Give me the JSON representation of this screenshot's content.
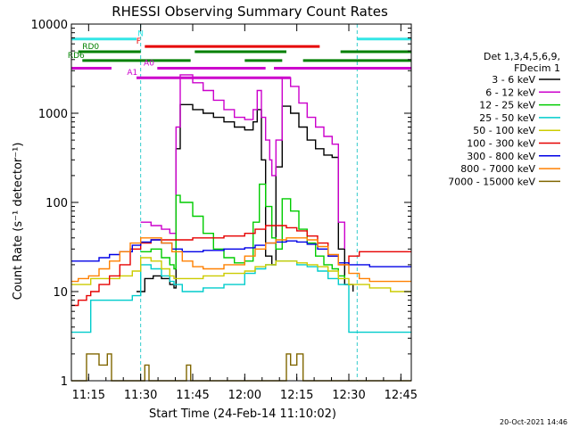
{
  "chart_data": {
    "type": "line",
    "title": "RHESSI Observing Summary Count Rates",
    "xlabel": "Start Time (24-Feb-14 11:10:02)",
    "ylabel": "Count Rate (s⁻¹ detector⁻¹)",
    "yscale": "log",
    "ylim": [
      1,
      10000
    ],
    "xlim": [
      11.1672,
      12.8
    ],
    "x_ticks": [
      {
        "v": 11.25,
        "label": "11:15"
      },
      {
        "v": 11.5,
        "label": "11:30"
      },
      {
        "v": 11.75,
        "label": "11:45"
      },
      {
        "v": 12.0,
        "label": "12:00"
      },
      {
        "v": 12.25,
        "label": "12:15"
      },
      {
        "v": 12.5,
        "label": "12:30"
      },
      {
        "v": 12.75,
        "label": "12:45"
      }
    ],
    "y_ticks": [
      {
        "v": 1,
        "label": "1"
      },
      {
        "v": 10,
        "label": "10"
      },
      {
        "v": 100,
        "label": "100"
      },
      {
        "v": 1000,
        "label": "1000"
      },
      {
        "v": 10000,
        "label": "10000"
      }
    ],
    "legend_title": [
      "Det 1,3,4,5,6,9,",
      "FDecim 1"
    ],
    "legend_position": "right",
    "footer_date": "20-Oct-2021 14:46",
    "series": [
      {
        "name": "3 - 6 keV",
        "color": "#000000",
        "points": [
          [
            11.48,
            10
          ],
          [
            11.52,
            14
          ],
          [
            11.56,
            15
          ],
          [
            11.6,
            14
          ],
          [
            11.64,
            12
          ],
          [
            11.66,
            11
          ],
          [
            11.67,
            400
          ],
          [
            11.69,
            1250
          ],
          [
            11.75,
            1100
          ],
          [
            11.8,
            1000
          ],
          [
            11.85,
            900
          ],
          [
            11.9,
            800
          ],
          [
            11.95,
            700
          ],
          [
            12.0,
            650
          ],
          [
            12.04,
            800
          ],
          [
            12.06,
            1100
          ],
          [
            12.08,
            300
          ],
          [
            12.1,
            25
          ],
          [
            12.13,
            20
          ],
          [
            12.15,
            250
          ],
          [
            12.18,
            1200
          ],
          [
            12.22,
            1000
          ],
          [
            12.26,
            700
          ],
          [
            12.3,
            500
          ],
          [
            12.34,
            400
          ],
          [
            12.38,
            340
          ],
          [
            12.42,
            320
          ],
          [
            12.45,
            30
          ],
          [
            12.48,
            12
          ],
          [
            12.52,
            10
          ]
        ]
      },
      {
        "name": "6 - 12 keV",
        "color": "#cc00cc",
        "points": [
          [
            11.5,
            60
          ],
          [
            11.55,
            55
          ],
          [
            11.6,
            50
          ],
          [
            11.64,
            45
          ],
          [
            11.66,
            45
          ],
          [
            11.67,
            700
          ],
          [
            11.69,
            2700
          ],
          [
            11.75,
            2200
          ],
          [
            11.8,
            1800
          ],
          [
            11.85,
            1400
          ],
          [
            11.9,
            1100
          ],
          [
            11.95,
            900
          ],
          [
            12.0,
            850
          ],
          [
            12.04,
            1100
          ],
          [
            12.06,
            1800
          ],
          [
            12.08,
            900
          ],
          [
            12.1,
            500
          ],
          [
            12.12,
            300
          ],
          [
            12.13,
            200
          ],
          [
            12.15,
            500
          ],
          [
            12.18,
            2500
          ],
          [
            12.22,
            2000
          ],
          [
            12.26,
            1300
          ],
          [
            12.3,
            900
          ],
          [
            12.34,
            700
          ],
          [
            12.38,
            550
          ],
          [
            12.42,
            450
          ],
          [
            12.45,
            60
          ],
          [
            12.48,
            30
          ]
        ]
      },
      {
        "name": "12 - 25 keV",
        "color": "#00cc00",
        "points": [
          [
            11.5,
            28
          ],
          [
            11.55,
            30
          ],
          [
            11.6,
            24
          ],
          [
            11.64,
            20
          ],
          [
            11.66,
            18
          ],
          [
            11.67,
            120
          ],
          [
            11.69,
            100
          ],
          [
            11.75,
            70
          ],
          [
            11.8,
            45
          ],
          [
            11.85,
            30
          ],
          [
            11.9,
            24
          ],
          [
            11.95,
            21
          ],
          [
            12.0,
            22
          ],
          [
            12.04,
            60
          ],
          [
            12.07,
            160
          ],
          [
            12.1,
            90
          ],
          [
            12.13,
            40
          ],
          [
            12.15,
            30
          ],
          [
            12.18,
            110
          ],
          [
            12.22,
            80
          ],
          [
            12.26,
            50
          ],
          [
            12.3,
            35
          ],
          [
            12.34,
            25
          ],
          [
            12.38,
            20
          ],
          [
            12.42,
            18
          ],
          [
            12.45,
            15
          ],
          [
            12.48,
            14
          ]
        ]
      },
      {
        "name": "25 - 50 keV",
        "color": "#00cccc",
        "points": [
          [
            11.1672,
            3.5
          ],
          [
            11.2,
            3.5
          ],
          [
            11.24,
            3.5
          ],
          [
            11.26,
            8
          ],
          [
            11.3,
            8
          ],
          [
            11.35,
            8
          ],
          [
            11.4,
            8
          ],
          [
            11.46,
            9
          ],
          [
            11.5,
            20
          ],
          [
            11.55,
            18
          ],
          [
            11.6,
            15
          ],
          [
            11.64,
            13
          ],
          [
            11.66,
            12
          ],
          [
            11.7,
            10
          ],
          [
            11.8,
            11
          ],
          [
            11.9,
            12
          ],
          [
            12.0,
            16
          ],
          [
            12.05,
            18
          ],
          [
            12.1,
            20
          ],
          [
            12.15,
            22
          ],
          [
            12.2,
            22
          ],
          [
            12.25,
            20
          ],
          [
            12.3,
            19
          ],
          [
            12.35,
            17
          ],
          [
            12.4,
            14
          ],
          [
            12.45,
            12
          ],
          [
            12.5,
            3.5
          ],
          [
            12.6,
            3.5
          ],
          [
            12.7,
            3.5
          ],
          [
            12.8,
            3.5
          ]
        ]
      },
      {
        "name": "50 - 100 keV",
        "color": "#cccc00",
        "points": [
          [
            11.1672,
            12
          ],
          [
            11.2,
            12
          ],
          [
            11.24,
            12
          ],
          [
            11.26,
            14
          ],
          [
            11.3,
            14
          ],
          [
            11.35,
            14
          ],
          [
            11.4,
            15
          ],
          [
            11.46,
            17
          ],
          [
            11.5,
            24
          ],
          [
            11.55,
            22
          ],
          [
            11.6,
            18
          ],
          [
            11.64,
            15
          ],
          [
            11.66,
            14
          ],
          [
            11.7,
            14
          ],
          [
            11.8,
            15
          ],
          [
            11.9,
            16
          ],
          [
            12.0,
            17
          ],
          [
            12.05,
            19
          ],
          [
            12.1,
            20
          ],
          [
            12.15,
            22
          ],
          [
            12.2,
            22
          ],
          [
            12.25,
            21
          ],
          [
            12.3,
            20
          ],
          [
            12.35,
            19
          ],
          [
            12.4,
            17
          ],
          [
            12.45,
            14
          ],
          [
            12.5,
            12
          ],
          [
            12.6,
            11
          ],
          [
            12.7,
            10
          ],
          [
            12.8,
            10
          ]
        ]
      },
      {
        "name": "100 - 300 keV",
        "color": "#e60000",
        "points": [
          [
            11.1672,
            7
          ],
          [
            11.2,
            8
          ],
          [
            11.24,
            9
          ],
          [
            11.26,
            10
          ],
          [
            11.3,
            12
          ],
          [
            11.35,
            15
          ],
          [
            11.4,
            20
          ],
          [
            11.45,
            30
          ],
          [
            11.5,
            35
          ],
          [
            11.55,
            38
          ],
          [
            11.6,
            38
          ],
          [
            11.65,
            38
          ],
          [
            11.7,
            38
          ],
          [
            11.75,
            40
          ],
          [
            11.8,
            40
          ],
          [
            11.9,
            42
          ],
          [
            12.0,
            45
          ],
          [
            12.05,
            50
          ],
          [
            12.1,
            55
          ],
          [
            12.15,
            55
          ],
          [
            12.2,
            52
          ],
          [
            12.25,
            48
          ],
          [
            12.3,
            42
          ],
          [
            12.35,
            35
          ],
          [
            12.4,
            25
          ],
          [
            12.45,
            20
          ],
          [
            12.5,
            25
          ],
          [
            12.55,
            28
          ],
          [
            12.6,
            28
          ],
          [
            12.7,
            28
          ],
          [
            12.8,
            28
          ]
        ]
      },
      {
        "name": "300 - 800 keV",
        "color": "#0000e6",
        "points": [
          [
            11.1672,
            22
          ],
          [
            11.2,
            22
          ],
          [
            11.24,
            22
          ],
          [
            11.26,
            22
          ],
          [
            11.3,
            24
          ],
          [
            11.35,
            26
          ],
          [
            11.4,
            28
          ],
          [
            11.46,
            33
          ],
          [
            11.5,
            36
          ],
          [
            11.55,
            38
          ],
          [
            11.6,
            35
          ],
          [
            11.65,
            30
          ],
          [
            11.7,
            28
          ],
          [
            11.8,
            29
          ],
          [
            11.9,
            30
          ],
          [
            12.0,
            31
          ],
          [
            12.05,
            33
          ],
          [
            12.1,
            35
          ],
          [
            12.15,
            36
          ],
          [
            12.2,
            37
          ],
          [
            12.25,
            36
          ],
          [
            12.3,
            34
          ],
          [
            12.35,
            30
          ],
          [
            12.4,
            25
          ],
          [
            12.45,
            21
          ],
          [
            12.5,
            20
          ],
          [
            12.6,
            19
          ],
          [
            12.7,
            19
          ],
          [
            12.8,
            19
          ]
        ]
      },
      {
        "name": "800 - 7000 keV",
        "color": "#ff8000",
        "points": [
          [
            11.1672,
            13
          ],
          [
            11.2,
            14
          ],
          [
            11.25,
            15
          ],
          [
            11.3,
            18
          ],
          [
            11.35,
            22
          ],
          [
            11.4,
            28
          ],
          [
            11.45,
            35
          ],
          [
            11.5,
            40
          ],
          [
            11.55,
            40
          ],
          [
            11.6,
            35
          ],
          [
            11.65,
            28
          ],
          [
            11.7,
            22
          ],
          [
            11.75,
            19
          ],
          [
            11.8,
            18
          ],
          [
            11.9,
            20
          ],
          [
            12.0,
            25
          ],
          [
            12.05,
            30
          ],
          [
            12.1,
            35
          ],
          [
            12.15,
            38
          ],
          [
            12.2,
            40
          ],
          [
            12.25,
            40
          ],
          [
            12.3,
            38
          ],
          [
            12.35,
            32
          ],
          [
            12.4,
            26
          ],
          [
            12.45,
            20
          ],
          [
            12.5,
            16
          ],
          [
            12.55,
            14
          ],
          [
            12.6,
            13
          ],
          [
            12.7,
            13
          ],
          [
            12.8,
            13
          ]
        ]
      },
      {
        "name": "7000 - 15000 keV",
        "color": "#806600",
        "points": [
          [
            11.1672,
            1
          ],
          [
            11.2,
            1
          ],
          [
            11.24,
            2
          ],
          [
            11.27,
            2
          ],
          [
            11.3,
            1.5
          ],
          [
            11.34,
            2
          ],
          [
            11.36,
            1
          ],
          [
            11.5,
            1
          ],
          [
            11.52,
            1.5
          ],
          [
            11.54,
            1
          ],
          [
            11.7,
            1
          ],
          [
            11.72,
            1.5
          ],
          [
            11.74,
            1
          ],
          [
            12.18,
            1
          ],
          [
            12.2,
            2
          ],
          [
            12.22,
            1.5
          ],
          [
            12.25,
            2
          ],
          [
            12.28,
            1
          ],
          [
            12.8,
            1
          ]
        ]
      }
    ],
    "annotation_bars": [
      {
        "label": "N",
        "color": "#33e6e6",
        "y": 6800,
        "segments": [
          [
            11.1672,
            11.48
          ],
          [
            12.54,
            12.8
          ]
        ],
        "label_x": 11.5
      },
      {
        "label": "F",
        "color": "#e60000",
        "y": 5600,
        "segments": [
          [
            11.52,
            12.36
          ]
        ],
        "label_x": 11.49
      },
      {
        "label": "RD0",
        "color": "#008000",
        "y": 4900,
        "segments": [
          [
            11.2,
            11.5
          ],
          [
            11.76,
            12.2
          ],
          [
            12.46,
            12.8
          ]
        ],
        "label_x": 11.26
      },
      {
        "label": "RD6",
        "color": "#008000",
        "y": 3900,
        "segments": [
          [
            11.22,
            11.74
          ],
          [
            12.0,
            12.18
          ],
          [
            12.28,
            12.8
          ]
        ],
        "label_x": 11.19
      },
      {
        "label": "A0",
        "color": "#cc00cc",
        "y": 3200,
        "segments": [
          [
            11.1672,
            11.36
          ],
          [
            11.58,
            12.1
          ],
          [
            12.14,
            12.8
          ]
        ],
        "label_x": 11.54
      },
      {
        "label": "A1",
        "color": "#cc00cc",
        "y": 2500,
        "segments": [
          [
            11.48,
            12.22
          ]
        ],
        "label_x": 11.46
      }
    ]
  }
}
